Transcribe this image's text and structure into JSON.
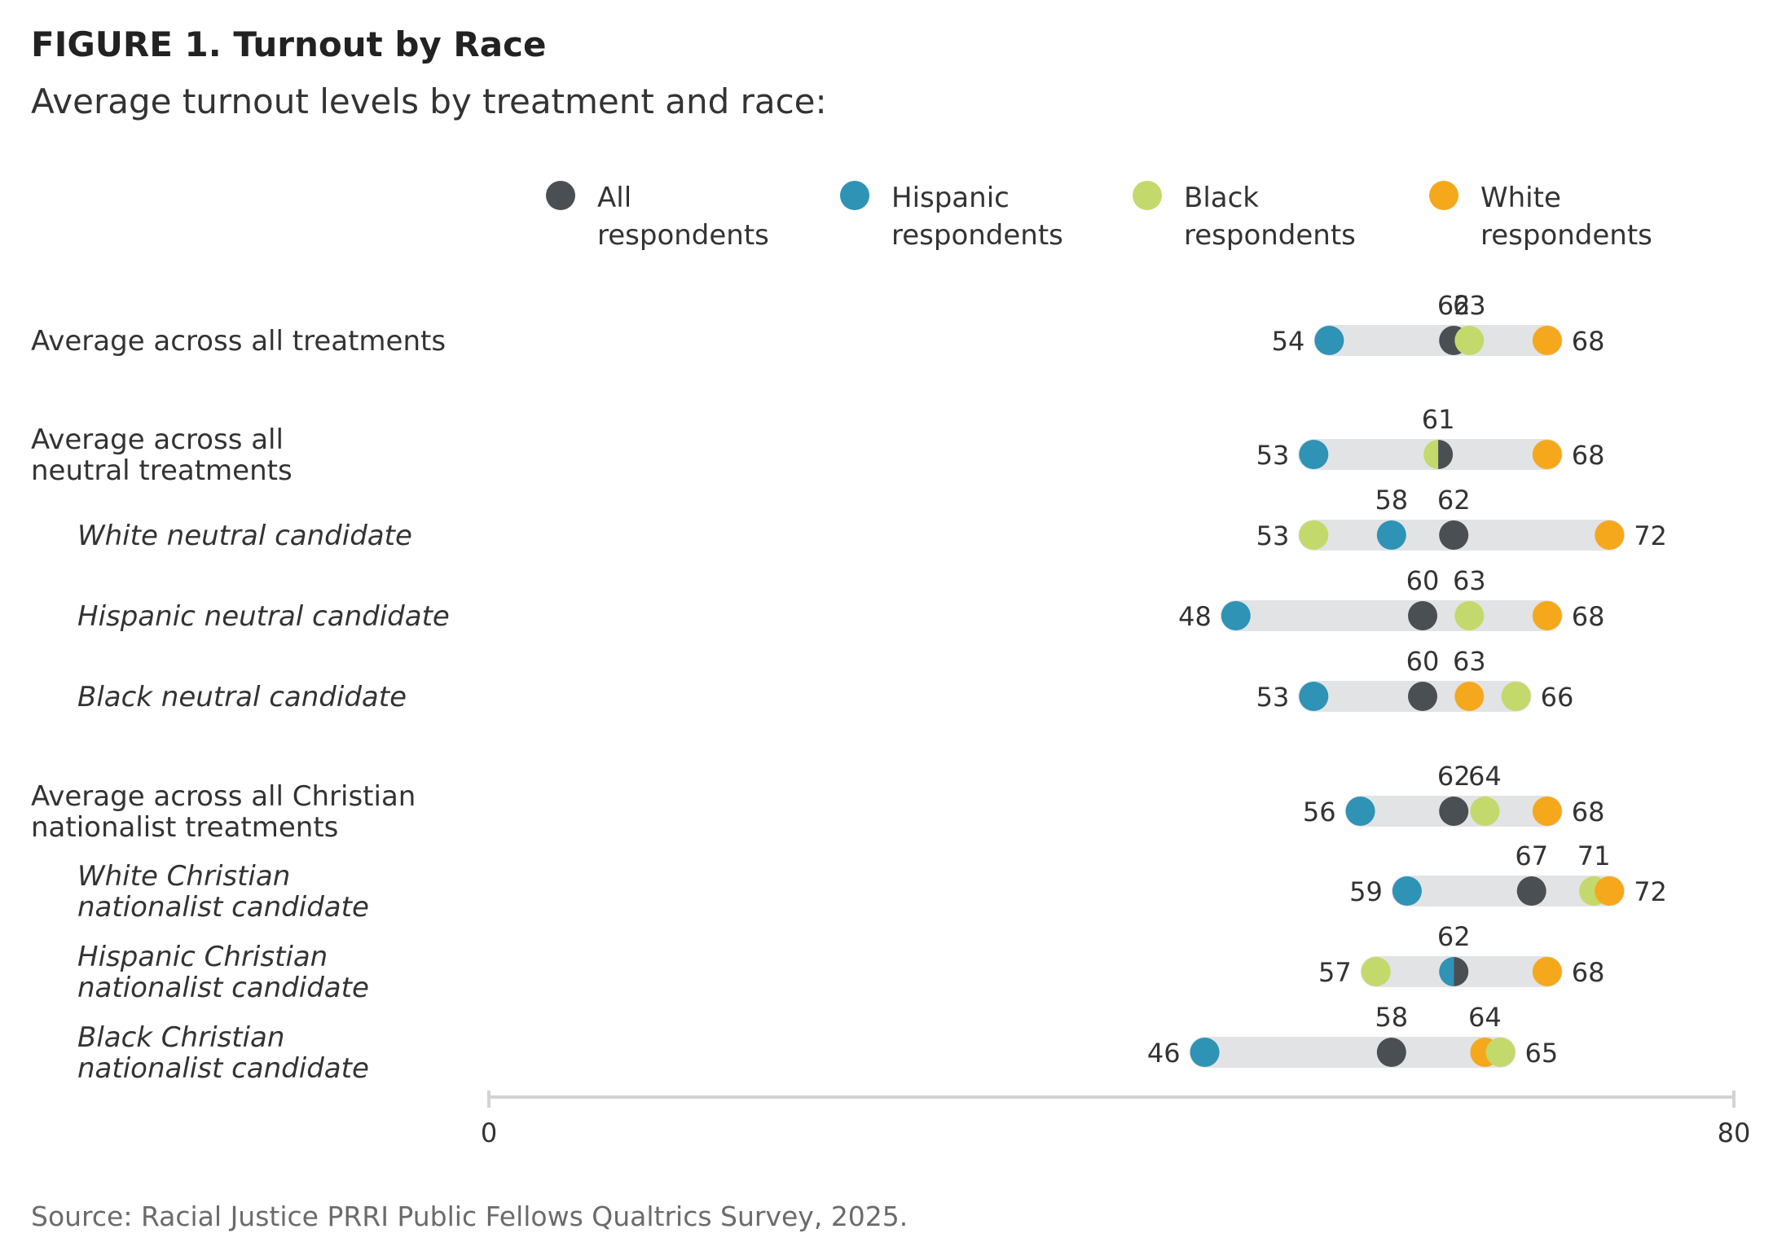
{
  "title": "FIGURE 1. Turnout by Race",
  "subtitle": "Average turnout levels by treatment and race:",
  "source": "Source: Racial Justice PRRI Public Fellows Qualtrics Survey, 2025.",
  "chart_data": {
    "type": "dot",
    "xlim": [
      0,
      80
    ],
    "x_ticks": [
      "0",
      "80"
    ],
    "grid": false,
    "legend_position": "top",
    "series": [
      {
        "key": "all",
        "name_lines": [
          "All",
          "respondents"
        ],
        "color": "#4a4f54"
      },
      {
        "key": "hispanic",
        "name_lines": [
          "Hispanic",
          "respondents"
        ],
        "color": "#2e93b5"
      },
      {
        "key": "black",
        "name_lines": [
          "Black",
          "respondents"
        ],
        "color": "#c3d96b"
      },
      {
        "key": "white",
        "name_lines": [
          "White",
          "respondents"
        ],
        "color": "#f5a81c"
      }
    ],
    "rows": [
      {
        "label": [
          "Average across all treatments"
        ],
        "italic": false,
        "values": {
          "all": 62,
          "hispanic": 54,
          "black": 63,
          "white": 68
        }
      },
      {
        "label": [
          "Average across all",
          "neutral treatments"
        ],
        "italic": false,
        "values": {
          "all": 61,
          "hispanic": 53,
          "black": 61,
          "white": 68
        }
      },
      {
        "label": [
          "White neutral candidate"
        ],
        "italic": true,
        "values": {
          "all": 62,
          "hispanic": 58,
          "black": 53,
          "white": 72
        }
      },
      {
        "label": [
          "Hispanic neutral candidate"
        ],
        "italic": true,
        "values": {
          "all": 60,
          "hispanic": 48,
          "black": 63,
          "white": 68
        }
      },
      {
        "label": [
          "Black neutral candidate"
        ],
        "italic": true,
        "values": {
          "all": 60,
          "hispanic": 53,
          "black": 66,
          "white": 63
        }
      },
      {
        "label": [
          "Average across all Christian",
          "nationalist treatments"
        ],
        "italic": false,
        "values": {
          "all": 62,
          "hispanic": 56,
          "black": 64,
          "white": 68
        }
      },
      {
        "label": [
          "White Christian",
          "nationalist candidate"
        ],
        "italic": true,
        "values": {
          "all": 67,
          "hispanic": 59,
          "black": 71,
          "white": 72
        }
      },
      {
        "label": [
          "Hispanic Christian",
          "nationalist candidate"
        ],
        "italic": true,
        "values": {
          "all": 62,
          "hispanic": 62,
          "black": 57,
          "white": 68
        }
      },
      {
        "label": [
          "Black Christian",
          "nationalist candidate"
        ],
        "italic": true,
        "values": {
          "all": 58,
          "hispanic": 46,
          "black": 65,
          "white": 64
        }
      }
    ]
  }
}
